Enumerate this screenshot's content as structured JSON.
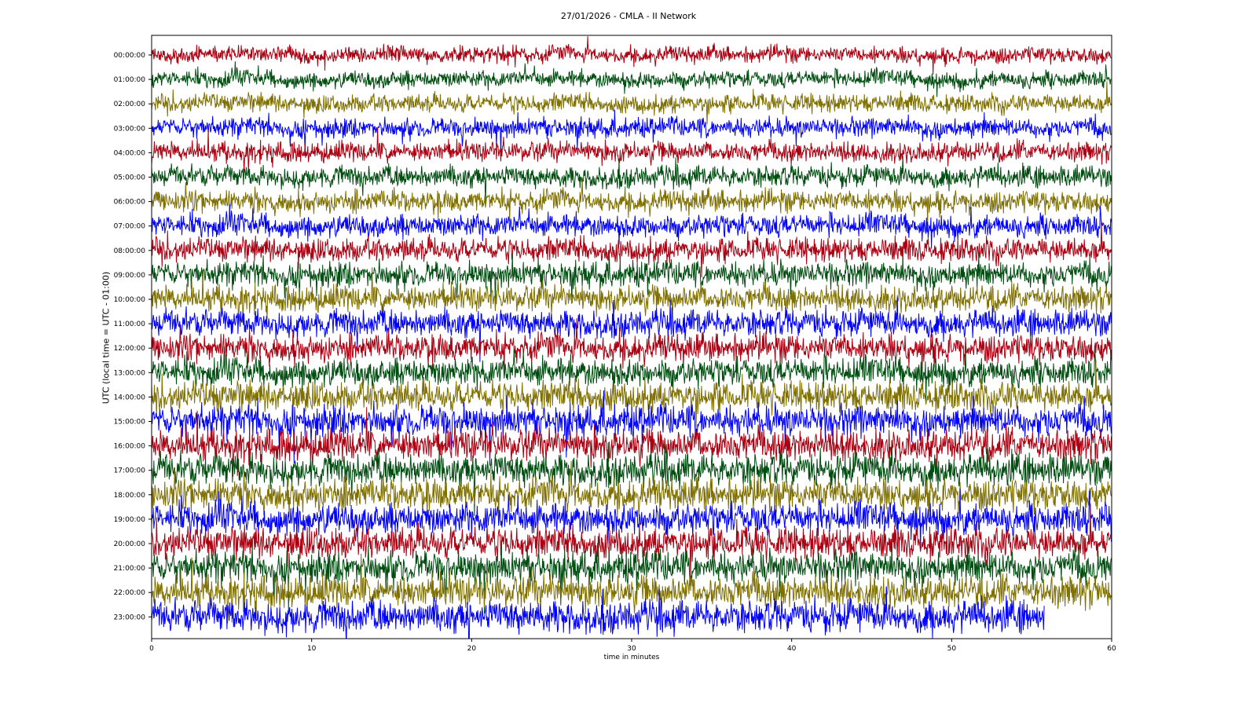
{
  "chart_data": {
    "type": "line",
    "title": "27/01/2026 - CMLA - II Network",
    "xlabel": "time in minutes",
    "ylabel": "UTC (local time = UTC - 01:00)",
    "xlim": [
      0,
      60
    ],
    "xticks": [
      "0",
      "10",
      "20",
      "30",
      "40",
      "50",
      "60"
    ],
    "rows": [
      "00:00:00",
      "01:00:00",
      "02:00:00",
      "03:00:00",
      "04:00:00",
      "05:00:00",
      "06:00:00",
      "07:00:00",
      "08:00:00",
      "09:00:00",
      "10:00:00",
      "11:00:00",
      "12:00:00",
      "13:00:00",
      "14:00:00",
      "15:00:00",
      "16:00:00",
      "17:00:00",
      "18:00:00",
      "19:00:00",
      "20:00:00",
      "21:00:00",
      "22:00:00",
      "23:00:00"
    ],
    "colors": [
      "#aa0011",
      "#004d10",
      "#7f7000",
      "#0000ff"
    ],
    "last_row_end_minute": 55.8,
    "grid": false
  }
}
